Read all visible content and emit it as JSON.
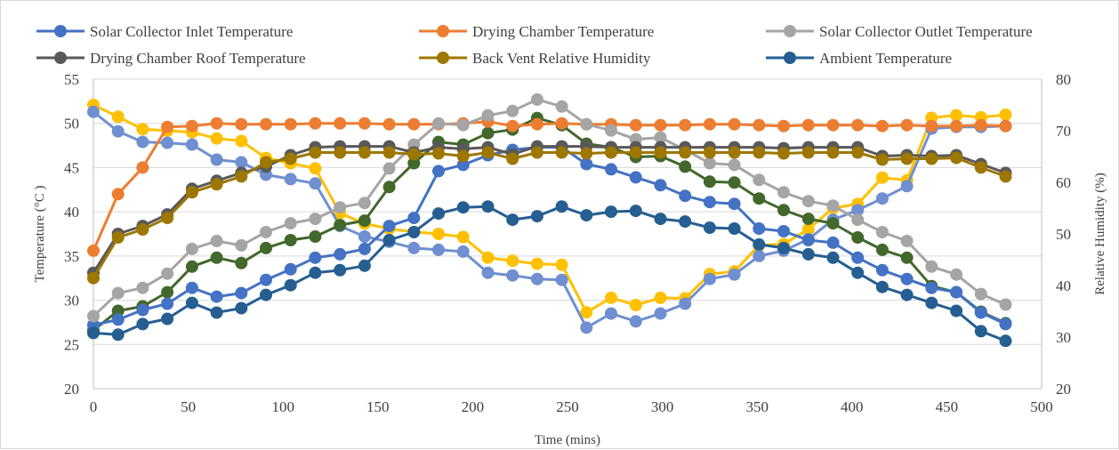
{
  "chart_data": {
    "type": "line",
    "xlabel": "Time (mins)",
    "ylabel_left": "Temperature (°C )",
    "ylabel_right": "Relative Humidity (%)",
    "xlim": [
      0,
      500
    ],
    "ylim_left": [
      20,
      55
    ],
    "ylim_right": [
      20,
      80
    ],
    "x_ticks": [
      0,
      50,
      100,
      150,
      200,
      250,
      300,
      350,
      400,
      450,
      500
    ],
    "y_ticks_left": [
      20,
      25,
      30,
      35,
      40,
      45,
      50,
      55
    ],
    "y_ticks_right": [
      20,
      30,
      40,
      50,
      60,
      70,
      80
    ],
    "grid": "horizontal",
    "legend_position": "top",
    "x": [
      0,
      13,
      26,
      39,
      52,
      65,
      78,
      91,
      104,
      117,
      130,
      143,
      156,
      169,
      182,
      195,
      208,
      221,
      234,
      247,
      260,
      273,
      286,
      299,
      312,
      325,
      338,
      351,
      364,
      377,
      390,
      403,
      416,
      429,
      442,
      455,
      468,
      481
    ],
    "series": [
      {
        "name": "Solar Collector Inlet Temperature",
        "axis": "left",
        "color": "#4472C4",
        "legend": true,
        "values": [
          27.2,
          27.8,
          28.9,
          29.6,
          31.4,
          30.4,
          30.8,
          32.3,
          33.5,
          34.8,
          35.2,
          35.8,
          38.4,
          39.3,
          44.6,
          45.3,
          46.4,
          47.0,
          47.3,
          47.3,
          45.4,
          44.8,
          43.9,
          43.0,
          41.8,
          41.1,
          40.9,
          38.1,
          37.8,
          36.8,
          36.5,
          34.8,
          33.4,
          32.4,
          31.4,
          30.9,
          28.6,
          27.3
        ]
      },
      {
        "name": "Drying Chamber Temperature",
        "axis": "left",
        "color": "#ED7D31",
        "legend": true,
        "values": [
          35.6,
          42.0,
          45.0,
          49.6,
          49.7,
          50.0,
          49.9,
          49.9,
          49.9,
          50.0,
          50.0,
          50.0,
          49.9,
          49.9,
          49.9,
          50.0,
          50.2,
          49.7,
          49.9,
          50.0,
          49.9,
          49.9,
          49.8,
          49.8,
          49.8,
          49.9,
          49.9,
          49.8,
          49.7,
          49.8,
          49.8,
          49.8,
          49.7,
          49.8,
          49.7,
          49.7,
          49.8,
          49.7
        ]
      },
      {
        "name": "Solar Collector Outlet Temperature",
        "axis": "left",
        "color": "#A5A5A5",
        "legend": true,
        "values": [
          28.2,
          30.8,
          31.4,
          33.0,
          35.8,
          36.7,
          36.2,
          37.7,
          38.7,
          39.2,
          40.5,
          41.0,
          44.9,
          47.6,
          50.0,
          49.8,
          50.9,
          51.4,
          52.7,
          51.9,
          49.9,
          49.2,
          48.2,
          48.4,
          47.0,
          45.5,
          45.3,
          43.6,
          42.2,
          41.2,
          40.7,
          39.1,
          37.7,
          36.7,
          33.8,
          32.9,
          30.7,
          29.5
        ]
      },
      {
        "name": "Drying Chamber Roof Temperature",
        "axis": "left",
        "color": "#595959",
        "legend": true,
        "values": [
          33.1,
          37.5,
          38.4,
          39.7,
          42.6,
          43.5,
          44.4,
          45.1,
          46.4,
          47.3,
          47.4,
          47.4,
          47.4,
          46.7,
          47.3,
          47.1,
          47.3,
          46.5,
          47.4,
          47.4,
          47.4,
          47.3,
          47.3,
          47.3,
          47.3,
          47.3,
          47.3,
          47.3,
          47.2,
          47.3,
          47.3,
          47.3,
          46.3,
          46.4,
          46.3,
          46.4,
          45.4,
          44.4
        ]
      },
      {
        "name": "Back Vent Relative Humidity",
        "axis": "left",
        "color": "#9E7700",
        "legend": true,
        "values": [
          32.5,
          37.1,
          38.0,
          39.3,
          42.2,
          43.1,
          44.0,
          45.6,
          46.0,
          46.7,
          46.7,
          46.7,
          46.7,
          46.5,
          46.6,
          46.3,
          46.7,
          46.0,
          46.7,
          46.7,
          46.6,
          46.7,
          46.7,
          46.7,
          46.7,
          46.7,
          46.7,
          46.7,
          46.6,
          46.7,
          46.7,
          46.7,
          45.9,
          46.0,
          46.0,
          46.1,
          45.0,
          44.0
        ]
      },
      {
        "name": "Ambient Temperature",
        "axis": "left",
        "color": "#255E91",
        "legend": true,
        "values": [
          26.3,
          26.1,
          27.3,
          27.9,
          29.7,
          28.6,
          29.1,
          30.6,
          31.7,
          33.1,
          33.4,
          33.9,
          36.8,
          37.7,
          39.8,
          40.5,
          40.6,
          39.1,
          39.5,
          40.6,
          39.6,
          40.0,
          40.1,
          39.2,
          38.9,
          38.2,
          38.1,
          36.3,
          35.9,
          35.2,
          34.8,
          33.1,
          31.5,
          30.6,
          29.7,
          28.8,
          26.5,
          25.4
        ]
      },
      {
        "name": "",
        "axis": "right",
        "color": "#FFC000",
        "legend": false,
        "values": [
          75.0,
          72.7,
          70.3,
          70.0,
          69.7,
          68.5,
          68.0,
          64.7,
          63.7,
          62.7,
          54.0,
          52.0,
          51.0,
          50.4,
          50.0,
          49.4,
          45.4,
          44.8,
          44.2,
          44.0,
          34.8,
          37.6,
          36.2,
          37.6,
          37.5,
          42.2,
          42.7,
          47.8,
          48.0,
          50.9,
          55.0,
          55.8,
          60.9,
          60.4,
          72.5,
          73.0,
          72.6,
          73.1
        ]
      },
      {
        "name": "",
        "axis": "left",
        "color": "#6F8FD0",
        "legend": false,
        "values": [
          51.3,
          49.1,
          47.9,
          47.8,
          47.6,
          45.9,
          45.6,
          44.2,
          43.7,
          43.2,
          38.4,
          37.2,
          36.6,
          35.9,
          35.7,
          35.5,
          33.1,
          32.8,
          32.4,
          32.3,
          26.9,
          28.5,
          27.6,
          28.5,
          29.6,
          32.4,
          32.9,
          35.0,
          35.6,
          36.9,
          39.1,
          40.2,
          41.5,
          42.9,
          49.4,
          49.6,
          49.6,
          49.7
        ]
      },
      {
        "name": "",
        "axis": "left",
        "color": "#43682B",
        "legend": false,
        "values": [
          26.6,
          28.8,
          29.3,
          30.9,
          33.8,
          34.8,
          34.2,
          35.9,
          36.8,
          37.2,
          38.5,
          39.0,
          42.8,
          45.5,
          47.9,
          47.6,
          48.9,
          49.3,
          50.6,
          49.8,
          47.7,
          47.3,
          46.2,
          46.3,
          45.1,
          43.4,
          43.3,
          41.5,
          40.2,
          39.2,
          38.7,
          37.1,
          35.7,
          34.8,
          31.6,
          30.9,
          28.7,
          27.4
        ]
      }
    ]
  }
}
